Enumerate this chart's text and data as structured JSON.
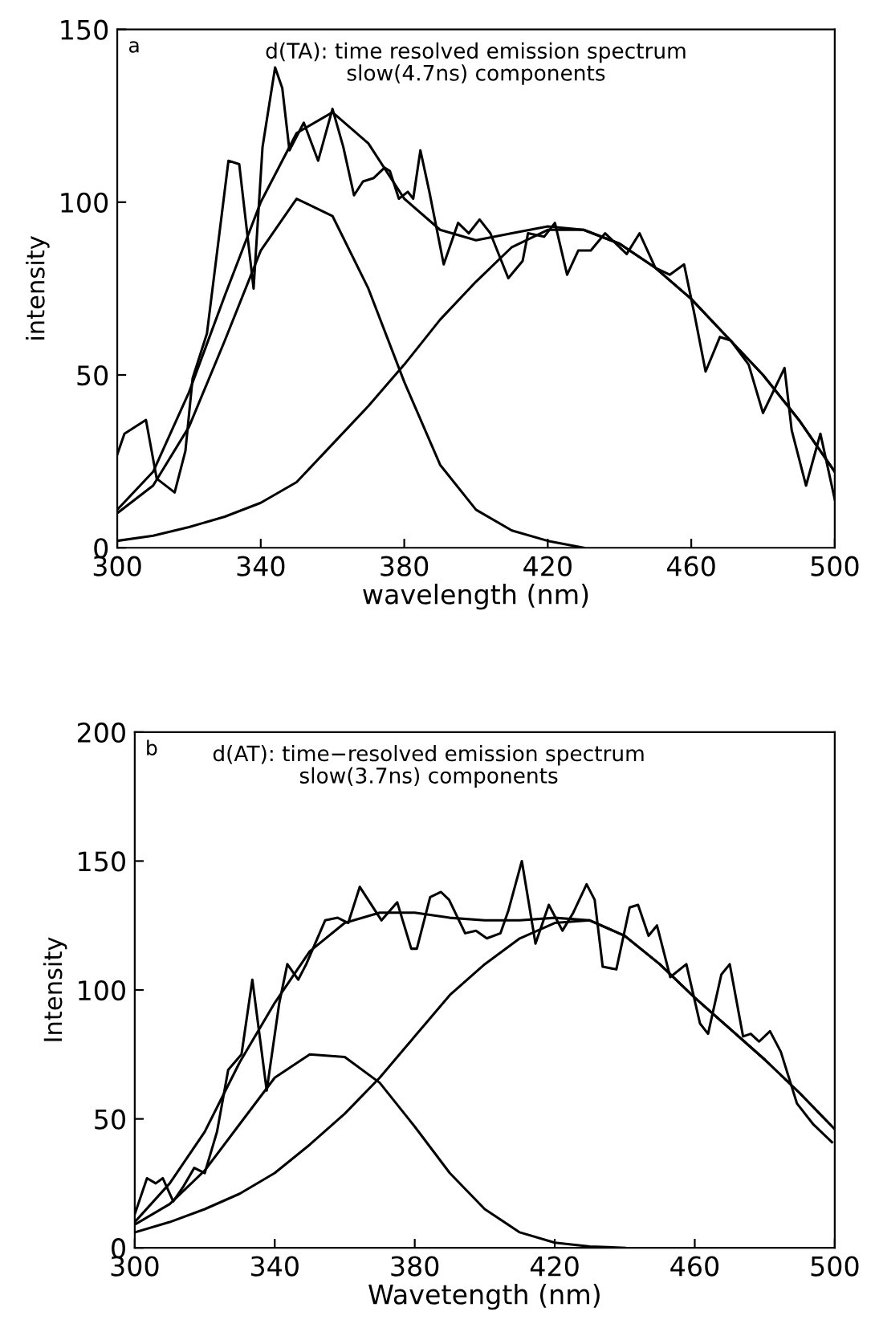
{
  "chart_data": [
    {
      "type": "line",
      "title": "d(TA): time resolved emission spectrum\nslow(4.7ns) components",
      "annotations": [
        "a"
      ],
      "xlabel": "wavelength (nm)",
      "ylabel": "intensity",
      "xlim": [
        300,
        500
      ],
      "xticks": [
        300,
        340,
        380,
        420,
        460,
        500
      ],
      "ylim": [
        0,
        150
      ],
      "yticks": [
        0,
        50,
        100,
        150
      ],
      "grid": false,
      "legend": false,
      "marker": "none",
      "line_style": "solid",
      "series": [
        {
          "color": "#000000",
          "x": [
            300,
            302,
            308,
            311,
            316,
            319,
            321,
            325,
            331,
            334,
            336,
            338,
            340.5,
            344,
            346,
            348,
            352,
            356,
            360,
            363,
            366,
            368.5,
            371.5,
            374.5,
            376,
            378.5,
            381,
            382.5,
            384.5,
            387,
            391,
            395,
            398,
            401,
            404,
            409,
            413,
            414.5,
            419,
            422,
            425.4,
            428.5,
            432,
            436,
            442,
            445.6,
            450,
            454,
            458,
            461,
            464,
            468,
            471,
            476,
            480,
            486,
            488,
            492,
            496,
            500
          ],
          "values": [
            27,
            33,
            37,
            20,
            16,
            28,
            49,
            62,
            112,
            111,
            93,
            75,
            116,
            139,
            133,
            115,
            123,
            112,
            127,
            116,
            102,
            106,
            107,
            110,
            109,
            101,
            103,
            101,
            115,
            103,
            82,
            94,
            91,
            95,
            91,
            78,
            83,
            91,
            90,
            94,
            79,
            86,
            86,
            91,
            85,
            91,
            81,
            79,
            82,
            67,
            51,
            61,
            60,
            53,
            39,
            52,
            34,
            18,
            33,
            14
          ]
        },
        {
          "color": "#000000",
          "x": [
            300,
            310,
            320,
            330,
            340,
            350,
            360,
            370,
            380,
            390,
            400,
            410,
            420,
            430,
            440,
            450,
            460,
            470,
            480,
            490,
            500
          ],
          "values": [
            11,
            22,
            45,
            73,
            100,
            120,
            126,
            117,
            101,
            92,
            89,
            91,
            93,
            92,
            88,
            81,
            72,
            61,
            50,
            37,
            22
          ]
        },
        {
          "color": "#000000",
          "x": [
            300,
            310,
            320,
            330,
            340,
            350,
            360,
            370,
            380,
            390,
            400,
            410,
            420,
            430
          ],
          "values": [
            10,
            18,
            35,
            60,
            86,
            101,
            96,
            75,
            48,
            24,
            11,
            5,
            2,
            0
          ]
        },
        {
          "color": "#000000",
          "x": [
            300,
            310,
            320,
            330,
            340,
            350,
            360,
            370,
            380,
            390,
            400,
            410,
            420,
            430,
            440,
            450,
            460,
            470,
            480,
            490,
            500
          ],
          "values": [
            2,
            3.5,
            6,
            9,
            13,
            19,
            30,
            41,
            53,
            66,
            77,
            87,
            92,
            92,
            88,
            81,
            72,
            61,
            50,
            37,
            22
          ]
        }
      ]
    },
    {
      "type": "line",
      "title": "d(AT): time−resolved emission spectrum\nslow(3.7ns) components",
      "annotations": [
        "b"
      ],
      "xlabel": "Wavetength (nm)",
      "ylabel": "Intensity",
      "xlim": [
        300,
        500
      ],
      "xticks": [
        300,
        340,
        380,
        420,
        460,
        500
      ],
      "ylim": [
        0,
        200
      ],
      "yticks": [
        0,
        50,
        100,
        150,
        200
      ],
      "grid": false,
      "legend": false,
      "marker": "none",
      "line_style": "solid",
      "series": [
        {
          "color": "#000000",
          "x": [
            300,
            303.5,
            306,
            308,
            311,
            314,
            317,
            320,
            323.5,
            326.7,
            330.5,
            333.6,
            337.7,
            341.3,
            343.6,
            346.7,
            349,
            354.4,
            358,
            361,
            364.3,
            370.5,
            375,
            379,
            380.6,
            384.4,
            387.5,
            389.8,
            394.4,
            397.5,
            400.6,
            404.5,
            406.8,
            410.6,
            414.5,
            418.3,
            422.2,
            425.3,
            429.1,
            431.4,
            433.7,
            437.6,
            441.4,
            443.8,
            446.8,
            449.2,
            453,
            457.6,
            461.5,
            463.8,
            467.6,
            470,
            473.8,
            476,
            478.4,
            481.5,
            484.6,
            489.2,
            493.8,
            499.2
          ],
          "values": [
            13,
            27,
            25,
            27,
            18,
            24,
            31,
            29,
            45,
            69,
            75,
            104,
            61,
            95,
            110,
            104,
            110,
            127,
            128,
            126,
            140,
            127,
            134,
            116,
            116,
            136,
            138,
            135,
            122,
            123,
            120,
            122,
            131,
            150,
            118,
            133,
            123,
            130,
            141,
            135,
            109,
            108,
            132,
            133,
            121,
            125,
            105,
            110,
            87,
            83,
            106,
            110,
            82,
            83,
            80,
            84,
            76,
            56,
            48,
            41
          ]
        },
        {
          "color": "#000000",
          "x": [
            300,
            310,
            320,
            330,
            340,
            350,
            360,
            370,
            380,
            390,
            400,
            410,
            420,
            430,
            440,
            450,
            460,
            470,
            480,
            490,
            500
          ],
          "values": [
            10,
            25,
            45,
            72,
            95,
            115,
            126,
            130,
            130,
            128,
            127,
            127,
            128,
            127,
            121,
            110,
            97,
            85,
            73,
            60,
            46
          ]
        },
        {
          "color": "#000000",
          "x": [
            300,
            310,
            320,
            330,
            340,
            350,
            360,
            370,
            380,
            390,
            400,
            410,
            420,
            430,
            440
          ],
          "values": [
            9,
            17,
            30,
            48,
            66,
            75,
            74,
            64,
            47,
            29,
            15,
            6,
            2,
            0.5,
            0
          ]
        },
        {
          "color": "#000000",
          "x": [
            300,
            310,
            320,
            330,
            340,
            350,
            360,
            370,
            380,
            390,
            400,
            410,
            420,
            430,
            440,
            450,
            460,
            470,
            480,
            490,
            500
          ],
          "values": [
            6,
            10,
            15,
            21,
            29,
            40,
            52,
            66,
            82,
            98,
            110,
            120,
            126,
            127,
            121,
            110,
            97,
            85,
            73,
            60,
            46
          ]
        }
      ]
    }
  ]
}
